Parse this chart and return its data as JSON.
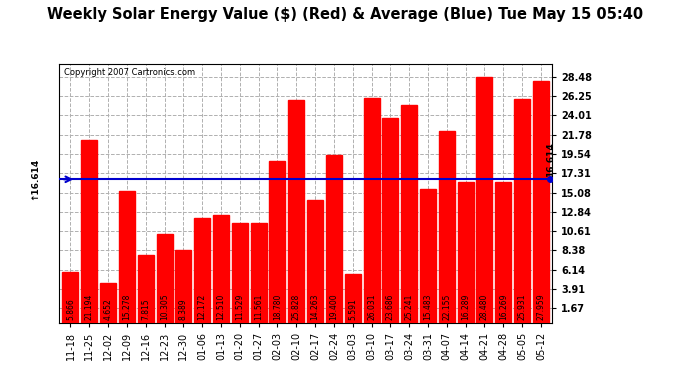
{
  "title": "Weekly Solar Energy Value ($) (Red) & Average (Blue) Tue May 15 05:40",
  "copyright": "Copyright 2007 Cartronics.com",
  "categories": [
    "11-18",
    "11-25",
    "12-02",
    "12-09",
    "12-16",
    "12-23",
    "12-30",
    "01-06",
    "01-13",
    "01-20",
    "01-27",
    "02-03",
    "02-10",
    "02-17",
    "02-24",
    "03-03",
    "03-10",
    "03-17",
    "03-24",
    "03-31",
    "04-07",
    "04-14",
    "04-21",
    "04-28",
    "05-05",
    "05-12"
  ],
  "values": [
    5.866,
    21.194,
    4.652,
    15.278,
    7.815,
    10.305,
    8.389,
    12.172,
    12.51,
    11.529,
    11.561,
    18.78,
    25.828,
    14.263,
    19.4,
    5.591,
    26.031,
    23.686,
    25.241,
    15.483,
    22.155,
    16.289,
    28.48,
    16.269,
    25.931,
    27.959
  ],
  "average": 16.614,
  "bar_color": "#ff0000",
  "average_color": "#0000cd",
  "background_color": "#ffffff",
  "plot_bg_color": "#ffffff",
  "grid_color": "#b0b0b0",
  "ylim": [
    0,
    30
  ],
  "yticks": [
    1.67,
    3.91,
    6.14,
    8.38,
    10.61,
    12.84,
    15.08,
    17.31,
    19.54,
    21.78,
    24.01,
    26.25,
    28.48
  ],
  "title_fontsize": 10.5,
  "tick_fontsize": 7,
  "label_fontsize": 5.5,
  "avg_label": "16.614"
}
